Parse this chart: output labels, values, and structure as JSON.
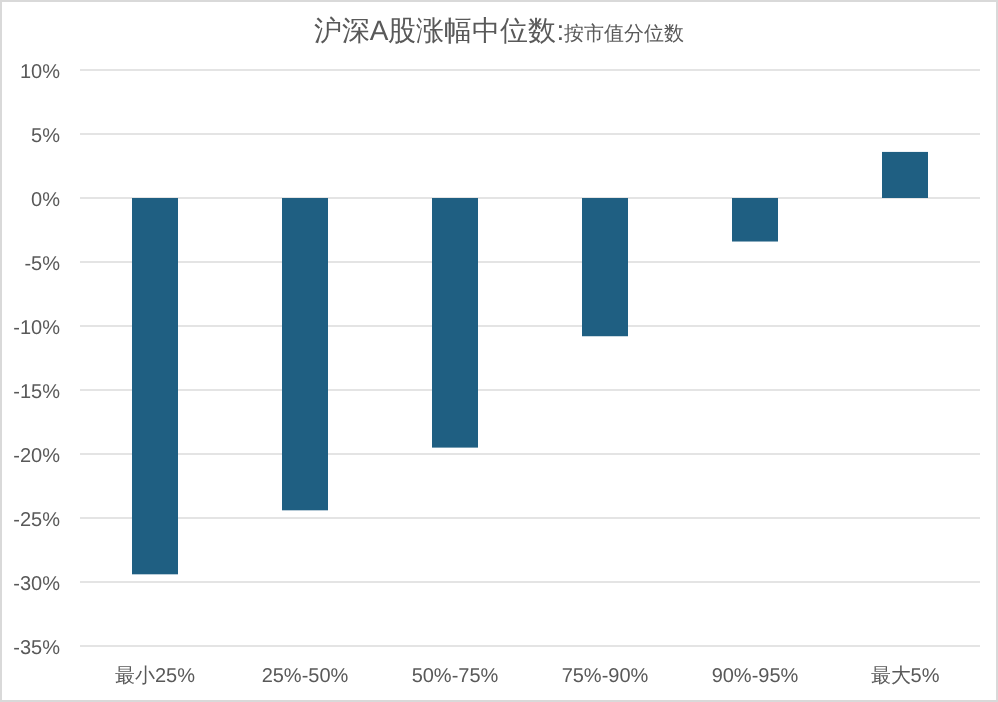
{
  "chart_data": {
    "type": "bar",
    "title": "沪深A股涨幅中位数:",
    "subtitle": "按市值分位数",
    "categories": [
      "最小25%",
      "25%-50%",
      "50%-75%",
      "75%-90%",
      "90%-95%",
      "最大5%"
    ],
    "values": [
      -29.4,
      -24.4,
      -19.5,
      -10.8,
      -3.4,
      3.6
    ],
    "color": "#1f5f82",
    "ylim": [
      -35,
      10
    ],
    "yticks": [
      {
        "value": -35,
        "label": "-35%"
      },
      {
        "value": -30,
        "label": "-30%"
      },
      {
        "value": -25,
        "label": "-25%"
      },
      {
        "value": -20,
        "label": "-20%"
      },
      {
        "value": -15,
        "label": "-15%"
      },
      {
        "value": -10,
        "label": "-10%"
      },
      {
        "value": -5,
        "label": "-5%"
      },
      {
        "value": 0,
        "label": "0%"
      },
      {
        "value": 5,
        "label": "5%"
      },
      {
        "value": 10,
        "label": "10%"
      }
    ],
    "grid": "y"
  }
}
